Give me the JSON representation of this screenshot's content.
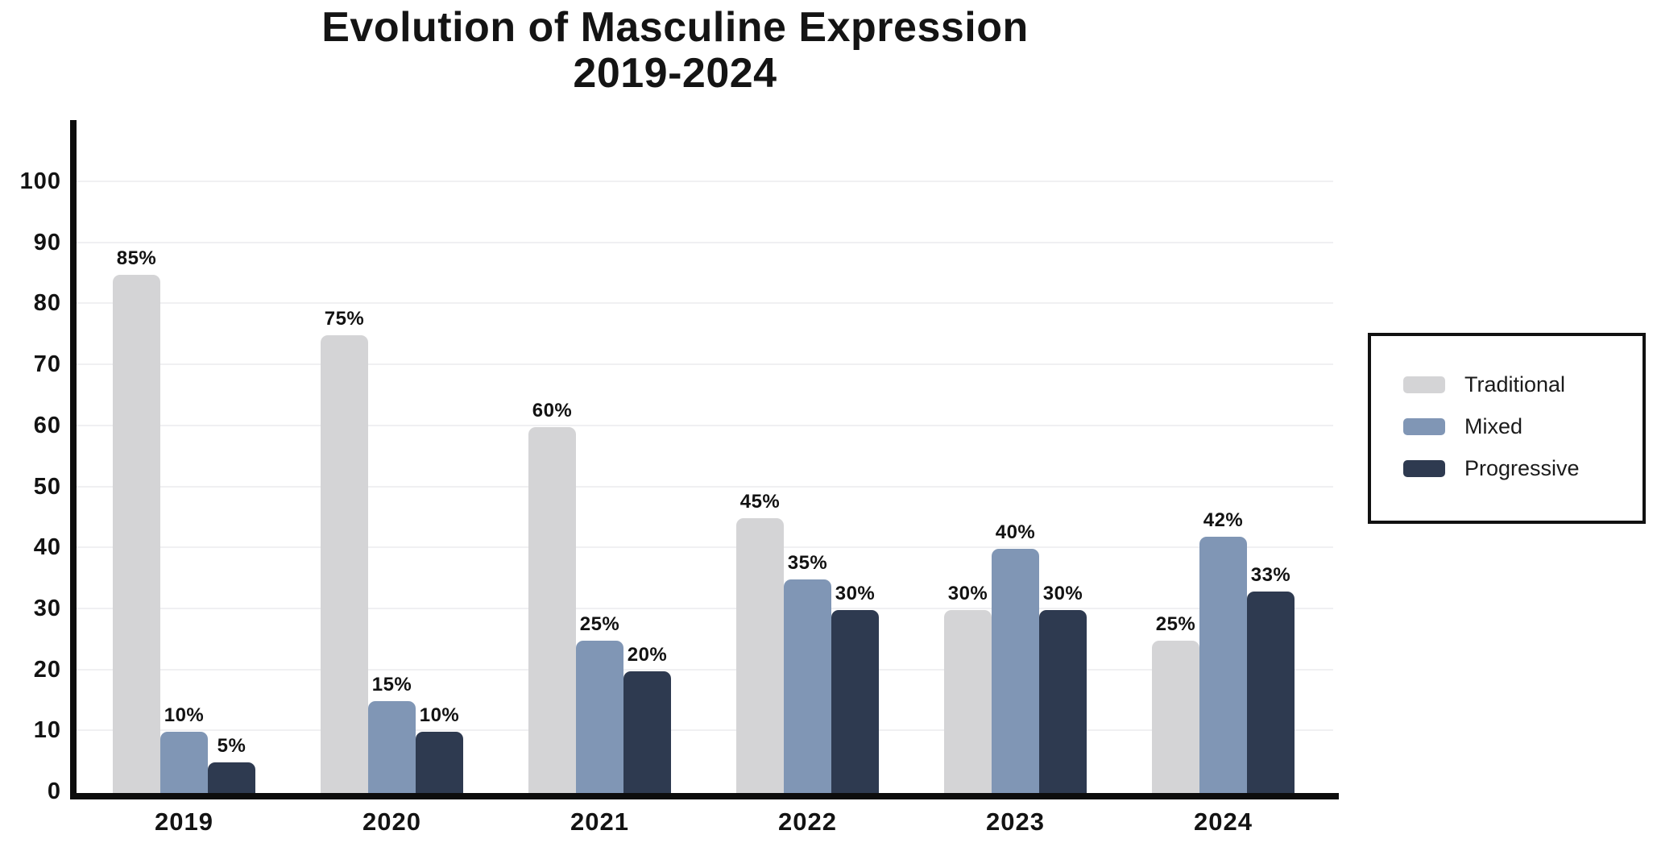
{
  "title": {
    "line1": "Evolution of Masculine Expression",
    "line2": "2019-2024"
  },
  "chart_data": {
    "type": "bar",
    "title": "Evolution of Masculine Expression 2019-2024",
    "categories": [
      "2019",
      "2020",
      "2021",
      "2022",
      "2023",
      "2024"
    ],
    "series": [
      {
        "name": "Traditional",
        "color": "#d4d4d6",
        "values": [
          85,
          75,
          60,
          45,
          30,
          25
        ]
      },
      {
        "name": "Mixed",
        "color": "#8096b5",
        "values": [
          10,
          15,
          25,
          35,
          40,
          42
        ]
      },
      {
        "name": "Progressive",
        "color": "#2e3a50",
        "values": [
          5,
          10,
          20,
          30,
          30,
          33
        ]
      }
    ],
    "value_suffix": "%",
    "xlabel": "",
    "ylabel": "",
    "ylim": [
      0,
      110
    ],
    "yticks": [
      0,
      10,
      20,
      30,
      40,
      50,
      60,
      70,
      80,
      90,
      100
    ],
    "grid": true,
    "legend_position": "right",
    "colors": {
      "axis": "#0d0d0d",
      "text": "#131313",
      "gridline": "#f0f0f2",
      "legend_border": "#111111",
      "background": "#ffffff"
    }
  }
}
